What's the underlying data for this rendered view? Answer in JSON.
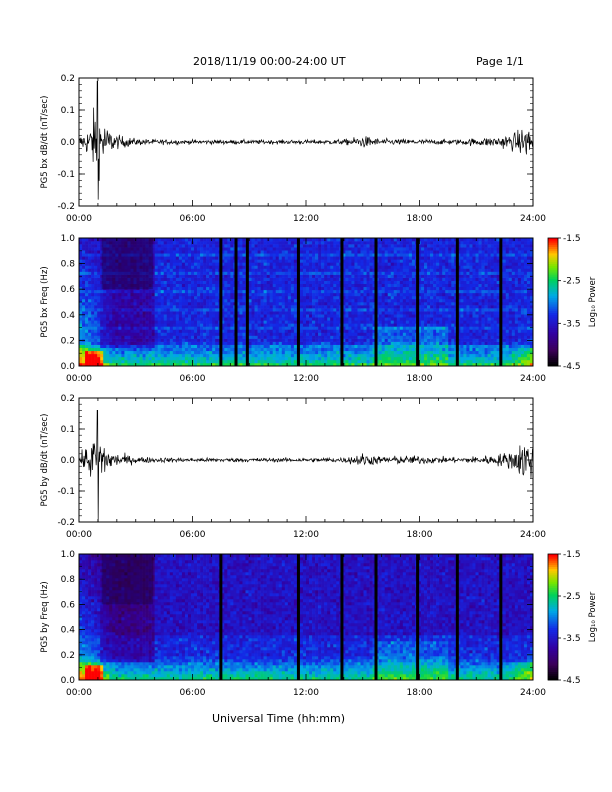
{
  "header": {
    "title": "2018/11/19  00:00-24:00 UT",
    "page": "Page 1/1"
  },
  "footer": {
    "xlabel": "Universal Time (hh:mm)"
  },
  "colors": {
    "trace": "#000000",
    "colorbar_low": "#000000",
    "colorbar_high": "#ff0000"
  },
  "chart_data": [
    {
      "type": "line",
      "title": "",
      "ylabel": "PG5 bx dB/dt (nT/sec)",
      "xlabel": "",
      "xlim": [
        0,
        24
      ],
      "ylim": [
        -0.2,
        0.2
      ],
      "x_ticks": [
        "00:00",
        "06:00",
        "12:00",
        "18:00",
        "24:00"
      ],
      "y_ticks": [
        "-0.2",
        "-0.1",
        "0.0",
        "0.1",
        "0.2"
      ],
      "series": [
        {
          "x": [
            0.0,
            0.3,
            0.6,
            0.8,
            1.0,
            1.2,
            1.5,
            2.0,
            3.0,
            4.0,
            6.0,
            8.0,
            10.0,
            12.0,
            14.0,
            15.0,
            16.0,
            18.0,
            20.0,
            22.0,
            23.0,
            23.5,
            23.8,
            24.0
          ],
          "y": [
            0.03,
            0.06,
            0.09,
            0.19,
            -0.18,
            0.16,
            0.08,
            0.04,
            0.02,
            0.015,
            0.012,
            0.012,
            0.012,
            0.012,
            0.015,
            0.035,
            0.018,
            0.015,
            0.015,
            0.03,
            0.05,
            0.08,
            0.1,
            0.07
          ]
        }
      ],
      "grid": false
    },
    {
      "type": "heatmap",
      "title": "",
      "ylabel": "PG5 bx Freq (Hz)",
      "xlabel": "",
      "xlim": [
        0,
        24
      ],
      "ylim": [
        0.0,
        1.0
      ],
      "x_ticks": [
        "00:00",
        "06:00",
        "12:00",
        "18:00",
        "24:00"
      ],
      "y_ticks": [
        "0.0",
        "0.2",
        "0.4",
        "0.6",
        "0.8",
        "1.0"
      ],
      "colorbar": {
        "label": "Log₁₀ Power",
        "range": [
          -4.5,
          -1.5
        ],
        "ticks": [
          "-1.5",
          "-2.5",
          "-3.5",
          "-4.5"
        ]
      },
      "data_gaps_hours": [
        7.5,
        8.3,
        8.9,
        11.6,
        13.9,
        15.7,
        17.9,
        20.0,
        22.3
      ],
      "dark_block_hours": [
        3.9,
        4.0
      ]
    },
    {
      "type": "line",
      "title": "",
      "ylabel": "PG5 by dB/dt (nT/sec)",
      "xlabel": "",
      "xlim": [
        0,
        24
      ],
      "ylim": [
        -0.2,
        0.2
      ],
      "x_ticks": [
        "00:00",
        "06:00",
        "12:00",
        "18:00",
        "24:00"
      ],
      "y_ticks": [
        "-0.2",
        "-0.1",
        "0.0",
        "0.1",
        "0.2"
      ],
      "series": [
        {
          "x": [
            0.0,
            0.3,
            0.6,
            0.8,
            1.0,
            1.2,
            1.5,
            2.0,
            3.0,
            4.0,
            6.0,
            8.0,
            10.0,
            12.0,
            14.0,
            15.0,
            16.0,
            17.0,
            18.0,
            20.0,
            22.0,
            23.0,
            23.5,
            23.8,
            24.0
          ],
          "y": [
            0.03,
            0.06,
            0.12,
            0.16,
            -0.2,
            0.15,
            0.07,
            0.04,
            0.02,
            0.015,
            0.012,
            0.012,
            0.012,
            0.012,
            0.015,
            0.04,
            0.02,
            0.025,
            0.025,
            0.015,
            0.03,
            0.06,
            0.12,
            0.13,
            0.1
          ]
        }
      ],
      "grid": false
    },
    {
      "type": "heatmap",
      "title": "",
      "ylabel": "PG5 by Freq (Hz)",
      "xlabel": "Universal Time (hh:mm)",
      "xlim": [
        0,
        24
      ],
      "ylim": [
        0.0,
        1.0
      ],
      "x_ticks": [
        "00:00",
        "06:00",
        "12:00",
        "18:00",
        "24:00"
      ],
      "y_ticks": [
        "0.0",
        "0.2",
        "0.4",
        "0.6",
        "0.8",
        "1.0"
      ],
      "colorbar": {
        "label": "Log₁₀ Power",
        "range": [
          -4.5,
          -1.5
        ],
        "ticks": [
          "-1.5",
          "-2.5",
          "-3.5",
          "-4.5"
        ]
      },
      "data_gaps_hours": [
        7.5,
        11.6,
        13.9,
        15.7,
        17.9,
        20.0,
        22.3
      ],
      "dark_block_hours": [
        3.9,
        4.0
      ]
    }
  ]
}
